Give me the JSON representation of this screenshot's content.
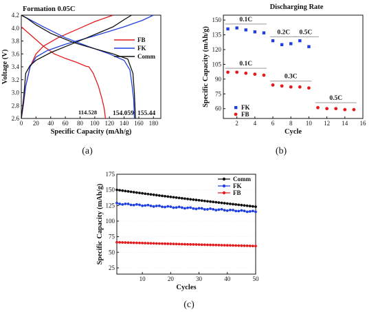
{
  "panels": {
    "a": {
      "caption": "(a)"
    },
    "b": {
      "caption": "(b)"
    },
    "c": {
      "caption": "(c)"
    }
  },
  "chart_data": [
    {
      "id": "a",
      "type": "line",
      "title": "Formation 0.05C",
      "xlabel": "Specific Capacity (mAh/g)",
      "ylabel": "Voltage (V)",
      "xlim": [
        0,
        190
      ],
      "ylim": [
        2.6,
        4.2
      ],
      "xticks": [
        0,
        20,
        40,
        60,
        80,
        100,
        120,
        140,
        160,
        180
      ],
      "yticks": [
        2.6,
        2.8,
        3.0,
        3.2,
        3.4,
        3.6,
        3.8,
        4.0,
        4.2
      ],
      "legend_position": "right",
      "series": [
        {
          "name": "FB",
          "color": "#e41a1c",
          "charge": [
            [
              0,
              2.6
            ],
            [
              3,
              2.82
            ],
            [
              6,
              3.1
            ],
            [
              12,
              3.4
            ],
            [
              20,
              3.6
            ],
            [
              30,
              3.72
            ],
            [
              50,
              3.85
            ],
            [
              80,
              4.0
            ],
            [
              100,
              4.1
            ],
            [
              120,
              4.18
            ],
            [
              125,
              4.2
            ]
          ],
          "discharge": [
            [
              0,
              4.02
            ],
            [
              10,
              3.92
            ],
            [
              20,
              3.82
            ],
            [
              30,
              3.72
            ],
            [
              45,
              3.6
            ],
            [
              60,
              3.53
            ],
            [
              75,
              3.47
            ],
            [
              88,
              3.41
            ],
            [
              92,
              3.4
            ],
            [
              98,
              3.3
            ],
            [
              105,
              3.1
            ],
            [
              110,
              2.9
            ],
            [
              113,
              2.75
            ],
            [
              114.528,
              2.6
            ]
          ]
        },
        {
          "name": "FK",
          "color": "#1f3fe0",
          "charge": [
            [
              0,
              2.6
            ],
            [
              3,
              2.85
            ],
            [
              6,
              3.1
            ],
            [
              12,
              3.4
            ],
            [
              20,
              3.55
            ],
            [
              35,
              3.65
            ],
            [
              60,
              3.75
            ],
            [
              100,
              3.88
            ],
            [
              140,
              4.02
            ],
            [
              165,
              4.12
            ],
            [
              180,
              4.2
            ]
          ],
          "discharge": [
            [
              0,
              4.2
            ],
            [
              10,
              4.14
            ],
            [
              30,
              4.02
            ],
            [
              60,
              3.85
            ],
            [
              90,
              3.72
            ],
            [
              120,
              3.6
            ],
            [
              140,
              3.5
            ],
            [
              148,
              3.35
            ],
            [
              151,
              3.1
            ],
            [
              153,
              2.9
            ],
            [
              154.059,
              2.6
            ]
          ]
        },
        {
          "name": "Comm",
          "color": "#111111",
          "charge": [
            [
              0,
              2.6
            ],
            [
              3,
              2.9
            ],
            [
              6,
              3.3
            ],
            [
              12,
              3.42
            ],
            [
              20,
              3.5
            ],
            [
              40,
              3.62
            ],
            [
              70,
              3.76
            ],
            [
              100,
              3.9
            ],
            [
              125,
              4.02
            ],
            [
              140,
              4.13
            ],
            [
              150,
              4.2
            ]
          ],
          "discharge": [
            [
              0,
              4.2
            ],
            [
              8,
              4.15
            ],
            [
              20,
              4.05
            ],
            [
              40,
              3.92
            ],
            [
              70,
              3.78
            ],
            [
              100,
              3.68
            ],
            [
              125,
              3.6
            ],
            [
              145,
              3.52
            ],
            [
              152,
              3.3
            ],
            [
              154,
              3.0
            ],
            [
              155.44,
              2.6
            ]
          ]
        }
      ],
      "annotations": [
        {
          "text": "114.528",
          "x": 114.528
        },
        {
          "text": "154.059",
          "x": 154.059
        },
        {
          "text": "155.44",
          "x": 155.44
        }
      ]
    },
    {
      "id": "b",
      "type": "scatter",
      "title": "Discharging Rate",
      "xlabel": "Cycle",
      "ylabel": "Specific Capacity (mAh/g)",
      "xlim": [
        0.5,
        16
      ],
      "ylim": [
        50,
        155
      ],
      "xticks": [
        2,
        4,
        6,
        8,
        10,
        12,
        14,
        16
      ],
      "yticks": [
        60,
        75,
        90,
        105,
        120,
        135,
        150
      ],
      "series": [
        {
          "name": "FK",
          "color": "#1f3fe0",
          "marker": "square",
          "x": [
            1,
            2,
            3,
            4,
            5,
            6,
            7,
            8,
            9,
            10
          ],
          "y": [
            141,
            142,
            140,
            138,
            137,
            129,
            125,
            126,
            129,
            123
          ]
        },
        {
          "name": "FB",
          "color": "#e41a1c",
          "marker": "circle",
          "x": [
            1,
            2,
            3,
            4,
            5,
            6,
            7,
            8,
            9,
            10,
            11,
            12,
            13,
            14,
            15
          ],
          "y": [
            97,
            97,
            96,
            95,
            94,
            84,
            83,
            82,
            82,
            81,
            61,
            60,
            60,
            59,
            59
          ]
        }
      ],
      "rate_labels": [
        {
          "text": "0.1C",
          "x1": 1,
          "x2": 5,
          "y": 146
        },
        {
          "text": "0.2C",
          "x1": 6,
          "x2": 8.4,
          "y": 133
        },
        {
          "text": "0.5C",
          "x1": 8.5,
          "x2": 10.8,
          "y": 133
        },
        {
          "text": "0.1C",
          "x1": 1,
          "x2": 5,
          "y": 101
        },
        {
          "text": "0.3C",
          "x1": 6,
          "x2": 10,
          "y": 88
        },
        {
          "text": "0.5C",
          "x1": 11,
          "x2": 15,
          "y": 66
        }
      ]
    },
    {
      "id": "c",
      "type": "line",
      "title": "",
      "xlabel": "Cycles",
      "ylabel": "Specific Capacity (mAh/g)",
      "xlim": [
        1,
        50
      ],
      "ylim": [
        15,
        175
      ],
      "xticks": [
        10,
        20,
        30,
        40,
        50
      ],
      "yticks": [
        25,
        50,
        75,
        100,
        125,
        150,
        175
      ],
      "legend_position": "top-right",
      "series": [
        {
          "name": "Comm",
          "color": "#111111",
          "marker": "circle",
          "start": 150,
          "end": 123
        },
        {
          "name": "FK",
          "color": "#1f3fe0",
          "marker": "circle",
          "start": 128,
          "end": 115
        },
        {
          "name": "FB",
          "color": "#e41a1c",
          "marker": "circle",
          "start": 66,
          "end": 60
        }
      ]
    }
  ]
}
